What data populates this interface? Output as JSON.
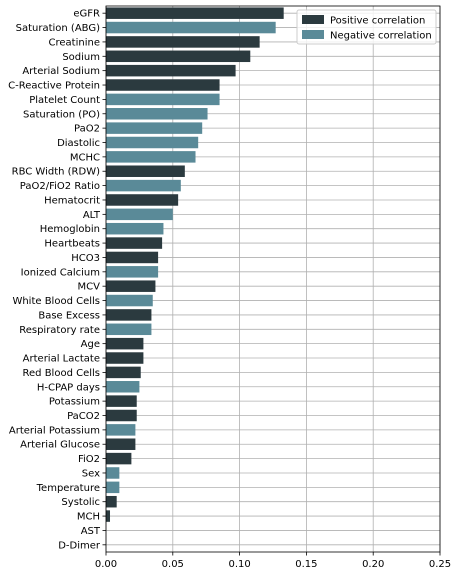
{
  "chart_data": {
    "type": "bar",
    "orientation": "horizontal",
    "xlim": [
      0,
      0.25
    ],
    "x_ticks": [
      "0.00",
      "0.05",
      "0.10",
      "0.15",
      "0.20",
      "0.25"
    ],
    "grid": "vertical gridlines on",
    "legend_placement": "top-right",
    "legend": [
      {
        "label": "Positive correlation",
        "color": "#2b3a3f"
      },
      {
        "label": "Negative correlation",
        "color": "#5a8a98"
      }
    ],
    "categories": [
      "eGFR",
      "Saturation (ABG)",
      "Creatinine",
      "Sodium",
      "Arterial Sodium",
      "C-Reactive Protein",
      "Platelet Count",
      "Saturation (PO)",
      "PaO2",
      "Diastolic",
      "MCHC",
      "RBC Width (RDW)",
      "PaO2/FiO2 Ratio",
      "Hematocrit",
      "ALT",
      "Hemoglobin",
      "Heartbeats",
      "HCO3",
      "Ionized Calcium",
      "MCV",
      "White Blood Cells",
      "Base Excess",
      "Respiratory rate",
      "Age",
      "Arterial Lactate",
      "Red Blood Cells",
      "H-CPAP days",
      "Potassium",
      "PaCO2",
      "Arterial Potassium",
      "Arterial Glucose",
      "FiO2",
      "Sex",
      "Temperature",
      "Systolic",
      "MCH",
      "AST",
      "D-Dimer"
    ],
    "values": [
      0.133,
      0.127,
      0.115,
      0.108,
      0.097,
      0.085,
      0.085,
      0.076,
      0.072,
      0.069,
      0.067,
      0.059,
      0.056,
      0.054,
      0.05,
      0.043,
      0.042,
      0.039,
      0.039,
      0.037,
      0.035,
      0.034,
      0.034,
      0.028,
      0.028,
      0.026,
      0.025,
      0.023,
      0.023,
      0.022,
      0.022,
      0.019,
      0.01,
      0.01,
      0.008,
      0.003,
      0.0,
      0.0
    ],
    "correlation": [
      "positive",
      "negative",
      "positive",
      "positive",
      "positive",
      "positive",
      "negative",
      "negative",
      "negative",
      "negative",
      "negative",
      "positive",
      "negative",
      "positive",
      "negative",
      "negative",
      "positive",
      "positive",
      "negative",
      "positive",
      "negative",
      "positive",
      "negative",
      "positive",
      "positive",
      "positive",
      "negative",
      "positive",
      "positive",
      "negative",
      "positive",
      "positive",
      "negative",
      "negative",
      "positive",
      "positive",
      "positive",
      "positive"
    ]
  }
}
